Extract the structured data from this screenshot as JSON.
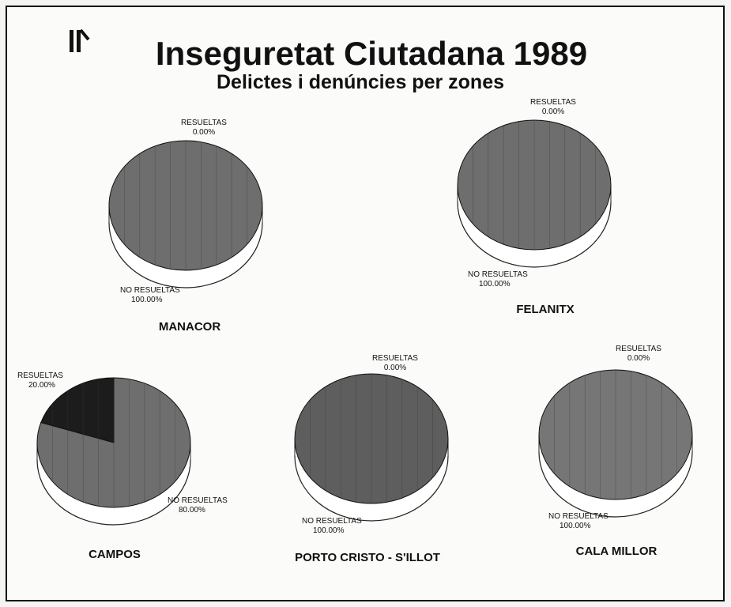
{
  "title": "Inseguretat Ciutadana 1989",
  "subtitle": "Delictes i denúncies per zones",
  "chart_data": [
    {
      "type": "pie",
      "title": "MANACOR",
      "categories": [
        "RESUELTAS",
        "NO RESUELTAS"
      ],
      "values": [
        0,
        100
      ],
      "value_labels": [
        "0.00%",
        "100.00%"
      ],
      "colors": [
        "#1c1c1c",
        "#6e6e6e"
      ]
    },
    {
      "type": "pie",
      "title": "FELANITX",
      "categories": [
        "RESUELTAS",
        "NO RESUELTAS"
      ],
      "values": [
        0,
        100
      ],
      "value_labels": [
        "0.00%",
        "100.00%"
      ],
      "colors": [
        "#1c1c1c",
        "#6e6e6e"
      ]
    },
    {
      "type": "pie",
      "title": "CAMPOS",
      "categories": [
        "RESUELTAS",
        "NO RESUELTAS"
      ],
      "values": [
        20,
        80
      ],
      "value_labels": [
        "20.00%",
        "80.00%"
      ],
      "colors": [
        "#1c1c1c",
        "#6e6e6e"
      ]
    },
    {
      "type": "pie",
      "title": "PORTO CRISTO - S'ILLOT",
      "categories": [
        "RESUELTAS",
        "NO RESUELTAS"
      ],
      "values": [
        0,
        100
      ],
      "value_labels": [
        "0.00%",
        "100.00%"
      ],
      "colors": [
        "#1c1c1c",
        "#5e5e5e"
      ]
    },
    {
      "type": "pie",
      "title": "CALA MILLOR",
      "categories": [
        "RESUELTAS",
        "NO RESUELTAS"
      ],
      "values": [
        0,
        100
      ],
      "value_labels": [
        "0.00%",
        "100.00%"
      ],
      "colors": [
        "#1c1c1c",
        "#767676"
      ]
    }
  ]
}
